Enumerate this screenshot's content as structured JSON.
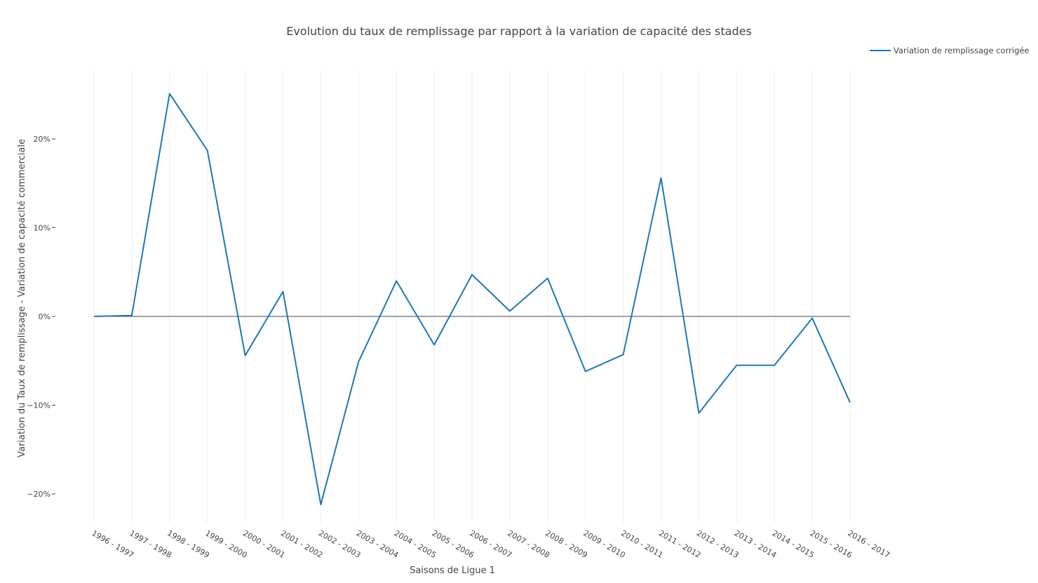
{
  "chart_data": {
    "type": "line",
    "title": "Evolution du taux de remplissage par rapport à la variation de capacité des stades",
    "xlabel": "Saisons de Ligue 1",
    "ylabel": "Variation du Taux de remplissage - Variation de capacité commerciale",
    "categories": [
      "1996 - 1997",
      "1997 - 1998",
      "1998 - 1999",
      "1999 - 2000",
      "2000 - 2001",
      "2001 - 2002",
      "2002 - 2003",
      "2003 - 2004",
      "2004 - 2005",
      "2005 - 2006",
      "2006 - 2007",
      "2007 - 2008",
      "2008 - 2009",
      "2009 - 2010",
      "2010 - 2011",
      "2011 - 2012",
      "2012 - 2013",
      "2013 - 2014",
      "2014 - 2015",
      "2015 - 2016",
      "2016 - 2017"
    ],
    "series": [
      {
        "name": "Variation de remplissage corrigée",
        "color": "#1f77b4",
        "values": [
          0.0,
          0.1,
          25.1,
          18.7,
          -4.4,
          2.8,
          -21.2,
          -5.1,
          4.0,
          -3.2,
          4.7,
          0.6,
          4.3,
          -6.2,
          -4.3,
          15.6,
          -10.9,
          -5.5,
          -5.5,
          -0.2,
          -9.7
        ]
      }
    ],
    "yticks": [
      -20,
      -10,
      0,
      10,
      20
    ],
    "ytick_labels": [
      "−20%",
      "−10%",
      "0%",
      "10%",
      "20%"
    ],
    "ylim": [
      -23.5,
      27.5
    ],
    "grid": "vertical",
    "zeroline": true,
    "legend_position": "top-right"
  }
}
